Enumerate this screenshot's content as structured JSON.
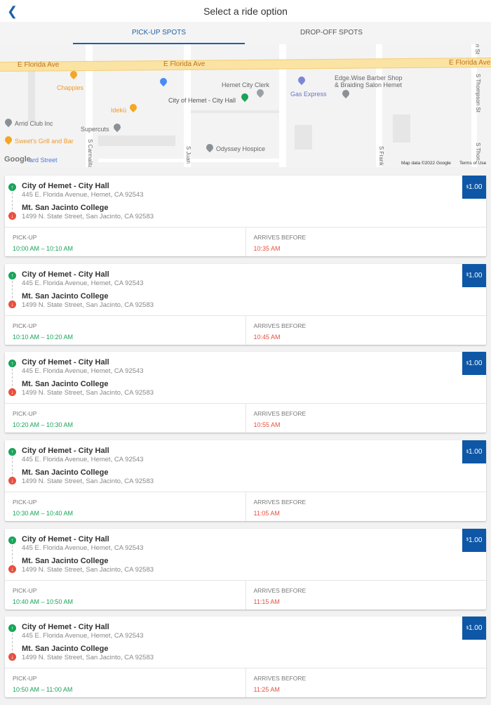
{
  "header": {
    "title": "Select a ride option",
    "back_icon": "chevron-left-icon"
  },
  "tabs": [
    {
      "label": "PICK-UP SPOTS",
      "active": true
    },
    {
      "label": "DROP-OFF SPOTS",
      "active": false
    }
  ],
  "map": {
    "streets": [
      "E Florida Ave",
      "E Florida Ave",
      "E Florida Ave",
      "S Carmalita",
      "S Juan",
      "S Frank",
      "S Thompson St",
      "S Thon",
      "n St"
    ],
    "places": [
      "Chappies",
      "Hemet City Clerk",
      "City of Hemet - City Hall",
      "Gas Express",
      "Edge.Wise Barber Shop",
      "& Braiding Salon Hemet",
      "Idekü",
      "Arrid Club Inc",
      "Supercuts",
      "Sweet's Grill and Bar",
      "Odyssey Hospice",
      "ard Street"
    ],
    "attribution": "Map data ©2022 Google",
    "terms": "Terms of Use",
    "logo": "Google"
  },
  "colors": {
    "accent": "#1d5fa8",
    "price_bg": "#0d57a6",
    "pickup": "#1aa35a",
    "dropoff": "#e8503f"
  },
  "labels": {
    "pickup": "PICK-UP",
    "arrives": "ARRIVES BEFORE"
  },
  "rides": [
    {
      "from": "City of Hemet - City Hall",
      "from_addr": "445 E. Florida Avenue, Hemet, CA 92543",
      "to": "Mt. San Jacinto College",
      "to_addr": "1499 N. State Street, San Jacinto, CA 92583",
      "currency": "$",
      "price": "1.00",
      "pickup": "10:00 AM – 10:10 AM",
      "arrives": "10:35 AM"
    },
    {
      "from": "City of Hemet - City Hall",
      "from_addr": "445 E. Florida Avenue, Hemet, CA 92543",
      "to": "Mt. San Jacinto College",
      "to_addr": "1499 N. State Street, San Jacinto, CA 92583",
      "currency": "$",
      "price": "1.00",
      "pickup": "10:10 AM – 10:20 AM",
      "arrives": "10:45 AM"
    },
    {
      "from": "City of Hemet - City Hall",
      "from_addr": "445 E. Florida Avenue, Hemet, CA 92543",
      "to": "Mt. San Jacinto College",
      "to_addr": "1499 N. State Street, San Jacinto, CA 92583",
      "currency": "$",
      "price": "1.00",
      "pickup": "10:20 AM – 10:30 AM",
      "arrives": "10:55 AM"
    },
    {
      "from": "City of Hemet - City Hall",
      "from_addr": "445 E. Florida Avenue, Hemet, CA 92543",
      "to": "Mt. San Jacinto College",
      "to_addr": "1499 N. State Street, San Jacinto, CA 92583",
      "currency": "$",
      "price": "1.00",
      "pickup": "10:30 AM – 10:40 AM",
      "arrives": "11:05 AM"
    },
    {
      "from": "City of Hemet - City Hall",
      "from_addr": "445 E. Florida Avenue, Hemet, CA 92543",
      "to": "Mt. San Jacinto College",
      "to_addr": "1499 N. State Street, San Jacinto, CA 92583",
      "currency": "$",
      "price": "1.00",
      "pickup": "10:40 AM – 10:50 AM",
      "arrives": "11:15 AM"
    },
    {
      "from": "City of Hemet - City Hall",
      "from_addr": "445 E. Florida Avenue, Hemet, CA 92543",
      "to": "Mt. San Jacinto College",
      "to_addr": "1499 N. State Street, San Jacinto, CA 92583",
      "currency": "$",
      "price": "1.00",
      "pickup": "10:50 AM – 11:00 AM",
      "arrives": "11:25 AM"
    }
  ]
}
